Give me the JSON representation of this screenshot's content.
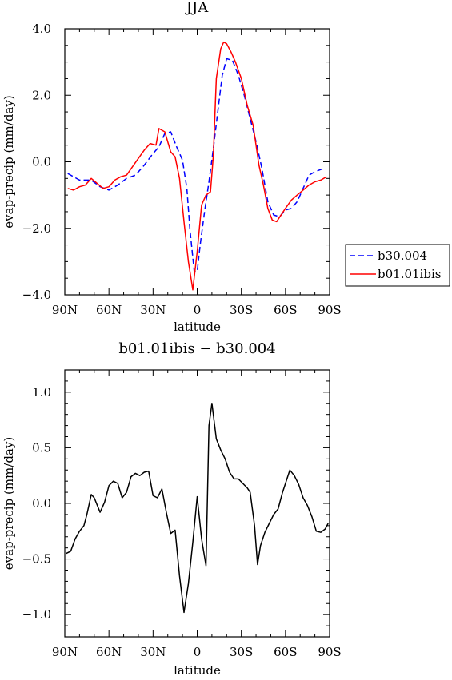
{
  "chart_data": [
    {
      "type": "line",
      "title": "JJA",
      "xlabel": "latitude",
      "ylabel": "evap-precip (mm/day)",
      "xlim": [
        90,
        -90
      ],
      "ylim": [
        -4,
        4
      ],
      "xticks": [
        90,
        60,
        30,
        0,
        -30,
        -60,
        -90
      ],
      "xtick_labels": [
        "90N",
        "60N",
        "30N",
        "0",
        "30S",
        "60S",
        "90S"
      ],
      "yticks": [
        -4,
        -2,
        0,
        2,
        4
      ],
      "ytick_labels": [
        "−4.0",
        "−2.0",
        "0.0",
        "2.0",
        "4.0"
      ],
      "legend_position": "right-outside",
      "series": [
        {
          "name": "b30.004",
          "color": "#0000ff",
          "dash": "dashed",
          "points": [
            [
              88,
              -0.35
            ],
            [
              80,
              -0.55
            ],
            [
              72,
              -0.55
            ],
            [
              66,
              -0.75
            ],
            [
              60,
              -0.85
            ],
            [
              54,
              -0.7
            ],
            [
              48,
              -0.5
            ],
            [
              42,
              -0.4
            ],
            [
              36,
              -0.1
            ],
            [
              30,
              0.25
            ],
            [
              26,
              0.45
            ],
            [
              22,
              0.85
            ],
            [
              18,
              0.9
            ],
            [
              14,
              0.45
            ],
            [
              10,
              0.05
            ],
            [
              7,
              -0.8
            ],
            [
              5,
              -2.0
            ],
            [
              2,
              -3.3
            ],
            [
              0,
              -3.3
            ],
            [
              -2,
              -2.5
            ],
            [
              -5,
              -1.5
            ],
            [
              -8,
              -0.6
            ],
            [
              -11,
              0.4
            ],
            [
              -14,
              1.5
            ],
            [
              -17,
              2.6
            ],
            [
              -20,
              3.1
            ],
            [
              -24,
              3.05
            ],
            [
              -28,
              2.6
            ],
            [
              -32,
              2.0
            ],
            [
              -36,
              1.3
            ],
            [
              -40,
              0.6
            ],
            [
              -44,
              -0.2
            ],
            [
              -48,
              -1.2
            ],
            [
              -52,
              -1.6
            ],
            [
              -56,
              -1.65
            ],
            [
              -60,
              -1.45
            ],
            [
              -64,
              -1.4
            ],
            [
              -68,
              -1.2
            ],
            [
              -72,
              -0.8
            ],
            [
              -76,
              -0.4
            ],
            [
              -80,
              -0.3
            ],
            [
              -86,
              -0.2
            ]
          ]
        },
        {
          "name": "b01.01ibis",
          "color": "#ff0000",
          "dash": "solid",
          "points": [
            [
              88,
              -0.8
            ],
            [
              84,
              -0.85
            ],
            [
              80,
              -0.75
            ],
            [
              76,
              -0.7
            ],
            [
              72,
              -0.5
            ],
            [
              68,
              -0.65
            ],
            [
              64,
              -0.8
            ],
            [
              60,
              -0.75
            ],
            [
              56,
              -0.55
            ],
            [
              52,
              -0.45
            ],
            [
              48,
              -0.4
            ],
            [
              44,
              -0.15
            ],
            [
              40,
              0.1
            ],
            [
              36,
              0.35
            ],
            [
              32,
              0.55
            ],
            [
              28,
              0.5
            ],
            [
              26,
              1.0
            ],
            [
              22,
              0.9
            ],
            [
              18,
              0.3
            ],
            [
              15,
              0.15
            ],
            [
              12,
              -0.5
            ],
            [
              9,
              -1.8
            ],
            [
              6,
              -3.0
            ],
            [
              3,
              -3.85
            ],
            [
              0,
              -2.7
            ],
            [
              -3,
              -1.3
            ],
            [
              -6,
              -1.0
            ],
            [
              -9,
              -0.9
            ],
            [
              -11,
              0.2
            ],
            [
              -13,
              2.5
            ],
            [
              -16,
              3.4
            ],
            [
              -18,
              3.6
            ],
            [
              -20,
              3.55
            ],
            [
              -23,
              3.3
            ],
            [
              -26,
              3.0
            ],
            [
              -30,
              2.5
            ],
            [
              -34,
              1.7
            ],
            [
              -38,
              1.1
            ],
            [
              -42,
              -0.1
            ],
            [
              -45,
              -0.7
            ],
            [
              -48,
              -1.4
            ],
            [
              -51,
              -1.75
            ],
            [
              -54,
              -1.8
            ],
            [
              -57,
              -1.6
            ],
            [
              -60,
              -1.4
            ],
            [
              -64,
              -1.15
            ],
            [
              -68,
              -1.0
            ],
            [
              -72,
              -0.85
            ],
            [
              -76,
              -0.7
            ],
            [
              -80,
              -0.6
            ],
            [
              -84,
              -0.55
            ],
            [
              -88,
              -0.45
            ]
          ]
        }
      ]
    },
    {
      "type": "line",
      "title": "b01.01ibis − b30.004",
      "xlabel": "latitude",
      "ylabel": "evap-precip (mm/day)",
      "xlim": [
        90,
        -90
      ],
      "ylim": [
        -1.2,
        1.2
      ],
      "xticks": [
        90,
        60,
        30,
        0,
        -30,
        -60,
        -90
      ],
      "xtick_labels": [
        "90N",
        "60N",
        "30N",
        "0",
        "30S",
        "60S",
        "90S"
      ],
      "yticks": [
        -1.0,
        -0.5,
        0,
        0.5,
        1.0
      ],
      "ytick_labels": [
        "−1.0",
        "−0.5",
        "0.0",
        "0.5",
        "1.0"
      ],
      "series": [
        {
          "color": "#000000",
          "dash": "solid",
          "points": [
            [
              89,
              -0.45
            ],
            [
              86,
              -0.43
            ],
            [
              83,
              -0.32
            ],
            [
              80,
              -0.25
            ],
            [
              77,
              -0.2
            ],
            [
              75,
              -0.1
            ],
            [
              72,
              0.08
            ],
            [
              70,
              0.05
            ],
            [
              66,
              -0.08
            ],
            [
              63,
              0.01
            ],
            [
              60,
              0.16
            ],
            [
              57,
              0.2
            ],
            [
              54,
              0.18
            ],
            [
              51,
              0.05
            ],
            [
              48,
              0.1
            ],
            [
              45,
              0.24
            ],
            [
              42,
              0.27
            ],
            [
              39,
              0.25
            ],
            [
              36,
              0.28
            ],
            [
              33,
              0.29
            ],
            [
              30,
              0.07
            ],
            [
              27,
              0.05
            ],
            [
              24,
              0.13
            ],
            [
              21,
              -0.08
            ],
            [
              18,
              -0.27
            ],
            [
              15,
              -0.24
            ],
            [
              12,
              -0.65
            ],
            [
              9,
              -0.98
            ],
            [
              6,
              -0.72
            ],
            [
              3,
              -0.35
            ],
            [
              0,
              0.06
            ],
            [
              -3,
              -0.32
            ],
            [
              -6,
              -0.56
            ],
            [
              -8,
              0.7
            ],
            [
              -10,
              0.9
            ],
            [
              -13,
              0.58
            ],
            [
              -16,
              0.48
            ],
            [
              -19,
              0.4
            ],
            [
              -22,
              0.28
            ],
            [
              -25,
              0.22
            ],
            [
              -28,
              0.22
            ],
            [
              -31,
              0.18
            ],
            [
              -34,
              0.14
            ],
            [
              -36,
              0.1
            ],
            [
              -39,
              -0.2
            ],
            [
              -41,
              -0.55
            ],
            [
              -43,
              -0.38
            ],
            [
              -46,
              -0.26
            ],
            [
              -49,
              -0.18
            ],
            [
              -52,
              -0.1
            ],
            [
              -55,
              -0.05
            ],
            [
              -58,
              0.1
            ],
            [
              -61,
              0.22
            ],
            [
              -63,
              0.3
            ],
            [
              -66,
              0.25
            ],
            [
              -69,
              0.17
            ],
            [
              -72,
              0.05
            ],
            [
              -75,
              -0.02
            ],
            [
              -78,
              -0.12
            ],
            [
              -81,
              -0.25
            ],
            [
              -84,
              -0.26
            ],
            [
              -87,
              -0.23
            ],
            [
              -89,
              -0.18
            ]
          ]
        }
      ]
    }
  ]
}
